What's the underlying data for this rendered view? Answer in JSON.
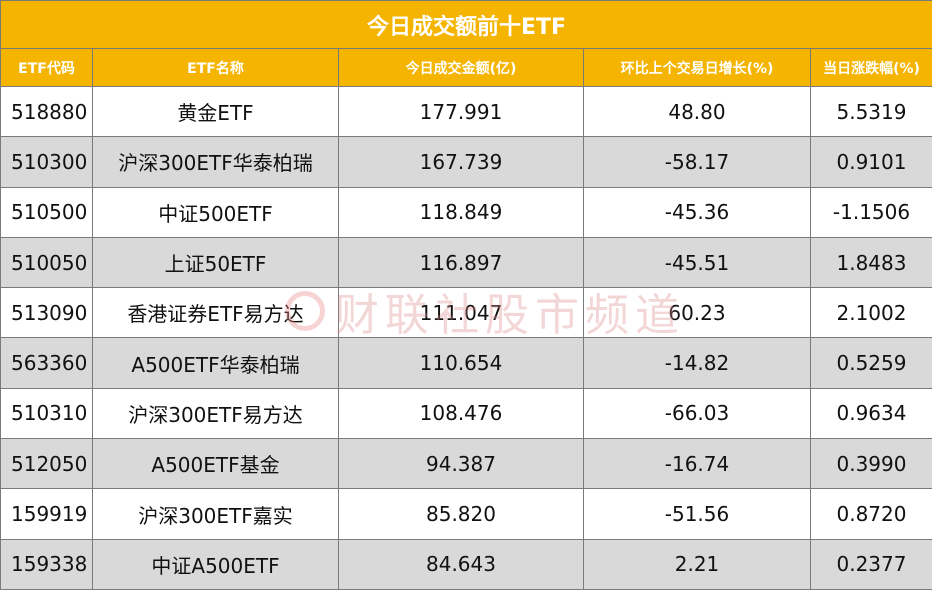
{
  "title": "今日成交额前十ETF",
  "headers": [
    "ETF代码",
    "ETF名称",
    "今日成交金额(亿)",
    "环比上个交易日增长(%)",
    "当日涨跌幅(%)"
  ],
  "watermark": "财联社股市频道",
  "colors": {
    "header_bg": "#f4b400",
    "header_text": "#ffffff",
    "row_alt_bg": "#d9d9d9"
  },
  "chart_data": {
    "type": "table",
    "title": "今日成交额前十ETF",
    "columns": [
      "ETF代码",
      "ETF名称",
      "今日成交金额(亿)",
      "环比上个交易日增长(%)",
      "当日涨跌幅(%)"
    ],
    "rows": [
      [
        "518880",
        "黄金ETF",
        "177.991",
        "48.80",
        "5.5319"
      ],
      [
        "510300",
        "沪深300ETF华泰柏瑞",
        "167.739",
        "-58.17",
        "0.9101"
      ],
      [
        "510500",
        "中证500ETF",
        "118.849",
        "-45.36",
        "-1.1506"
      ],
      [
        "510050",
        "上证50ETF",
        "116.897",
        "-45.51",
        "1.8483"
      ],
      [
        "513090",
        "香港证券ETF易方达",
        "111.047",
        "60.23",
        "2.1002"
      ],
      [
        "563360",
        "A500ETF华泰柏瑞",
        "110.654",
        "-14.82",
        "0.5259"
      ],
      [
        "510310",
        "沪深300ETF易方达",
        "108.476",
        "-66.03",
        "0.9634"
      ],
      [
        "512050",
        "A500ETF基金",
        "94.387",
        "-16.74",
        "0.3990"
      ],
      [
        "159919",
        "沪深300ETF嘉实",
        "85.820",
        "-51.56",
        "0.8720"
      ],
      [
        "159338",
        "中证A500ETF",
        "84.643",
        "2.21",
        "0.2377"
      ]
    ]
  }
}
